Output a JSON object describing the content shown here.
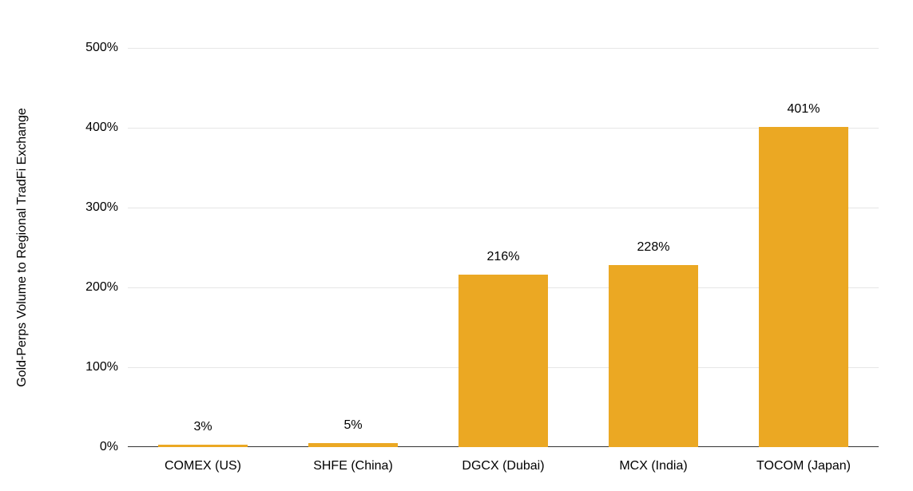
{
  "chart_data": {
    "type": "bar",
    "title": "",
    "xlabel": "",
    "ylabel": "Gold-Perps Volume to Regional TradFi Exchange",
    "categories": [
      "COMEX (US)",
      "SHFE (China)",
      "DGCX (Dubai)",
      "MCX (India)",
      "TOCOM (Japan)"
    ],
    "values": [
      3,
      5,
      216,
      228,
      401
    ],
    "value_labels": [
      "3%",
      "5%",
      "216%",
      "228%",
      "401%"
    ],
    "ylim": [
      0,
      500
    ],
    "ytick_step": 100,
    "ytick_labels": [
      "0%",
      "100%",
      "200%",
      "300%",
      "400%",
      "500%"
    ],
    "grid": true,
    "legend": "none",
    "colors": {
      "bar": "#EBA823",
      "grid": "#e6e6e6",
      "axis_line": "#333333",
      "text": "#000000",
      "background": "#ffffff"
    }
  }
}
